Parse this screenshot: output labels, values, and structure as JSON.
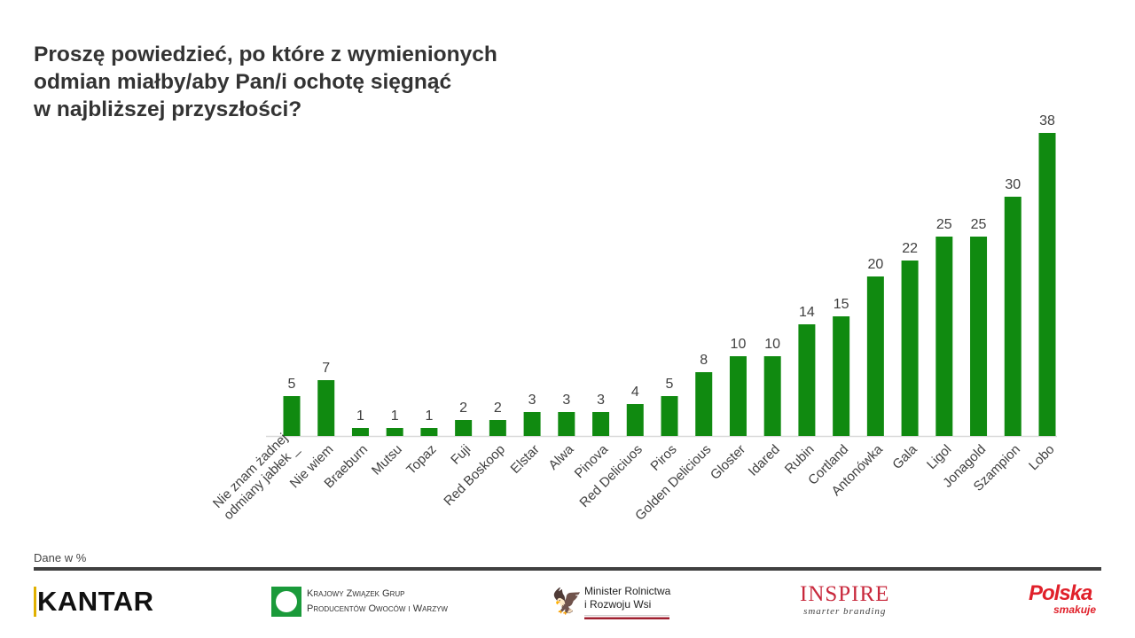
{
  "title": "Proszę powiedzieć, po które z wymienionych\nodmian miałby/aby Pan/i ochotę sięgnąć\nw najbliższej przyszłości?",
  "note": "Dane w %",
  "colors": {
    "bar": "#108a10",
    "axis": "#d9d9d9",
    "label": "#404040"
  },
  "chart_data": {
    "type": "bar",
    "title": "",
    "xlabel": "",
    "ylabel": "",
    "ylim": [
      0,
      40
    ],
    "grid": false,
    "legend": "none",
    "categories": [
      "Nie znam żadnej|odmiany jabłek _",
      "Nie wiem",
      "Braeburn",
      "Mutsu",
      "Topaz",
      "Fuji",
      "Red Boskoop",
      "Elstar",
      "Alwa",
      "Pinova",
      "Red Deliciuos",
      "Piros",
      "Golden Delicious",
      "Gloster",
      "Idared",
      "Rubin",
      "Cortland",
      "Antonówka",
      "Gala",
      "Ligol",
      "Jonagold",
      "Szampion",
      "Lobo"
    ],
    "values": [
      5,
      7,
      1,
      1,
      1,
      2,
      2,
      3,
      3,
      3,
      4,
      5,
      8,
      10,
      10,
      14,
      15,
      20,
      22,
      25,
      25,
      30,
      38
    ]
  },
  "logos": {
    "kantar": "KANTAR",
    "kzgp": [
      "Krajowy Związek Grup",
      "Producentów Owoców i Warzyw"
    ],
    "ministry": [
      "Minister Rolnictwa",
      "i Rozwoju Wsi"
    ],
    "inspire": [
      "INSPIRE",
      "smarter branding"
    ],
    "polska": [
      "Polska",
      "smakuje"
    ]
  }
}
